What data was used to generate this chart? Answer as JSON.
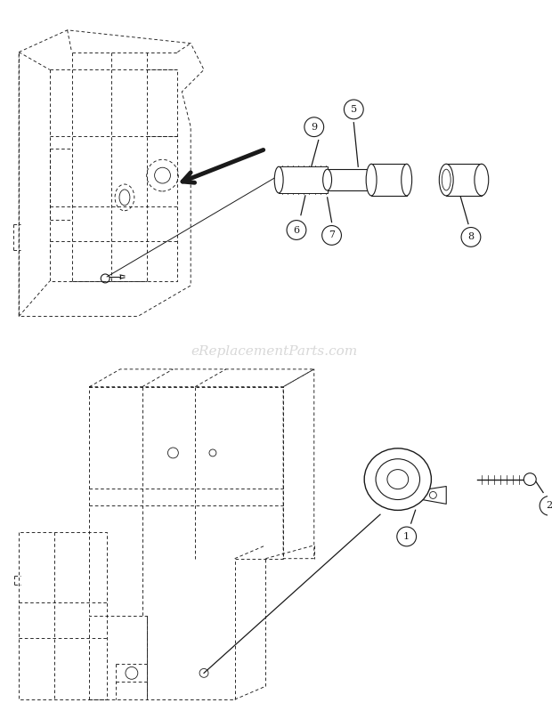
{
  "bg_color": "#ffffff",
  "watermark": "eReplacementParts.com",
  "watermark_color": "#d8d8d8",
  "fig_width": 6.2,
  "fig_height": 8.08,
  "dpi": 100,
  "line_color": "#1a1a1a",
  "lw_main": 0.9,
  "lw_dash": 0.65,
  "dash": [
    4,
    3
  ]
}
